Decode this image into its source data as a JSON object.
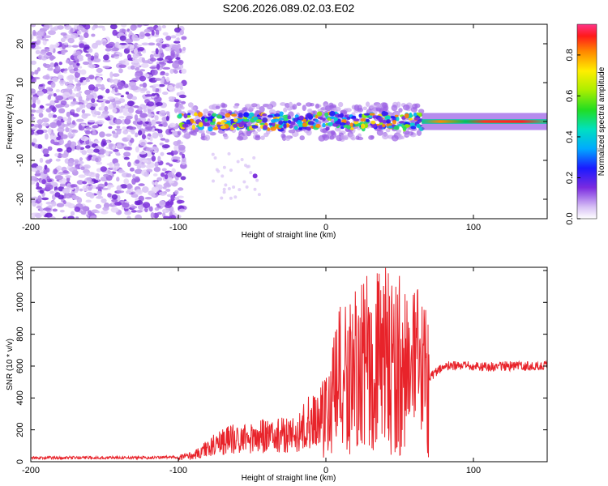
{
  "figure": {
    "title": "S206.2026.089.02.03.E02"
  },
  "chart_data": [
    {
      "type": "heatmap",
      "name": "spectrogram",
      "xlabel": "Height of straight line (km)",
      "ylabel": "Frequency (Hz)",
      "xlim": [
        -200,
        150
      ],
      "ylim": [
        -25,
        25
      ],
      "xticks": [
        -200,
        -100,
        0,
        100
      ],
      "yticks": [
        -20,
        -10,
        0,
        10,
        20
      ],
      "colorbar": {
        "label": "Normalized spectral amplitude",
        "range": [
          0,
          0.95
        ],
        "ticks": [
          0.0,
          0.2,
          0.4,
          0.6,
          0.8
        ],
        "tick_labels": [
          "0.0",
          "0.2",
          "0.4",
          "0.6",
          "0.8"
        ]
      },
      "regions": [
        {
          "x": [
            -200,
            -100
          ],
          "freq_range": [
            -25,
            25
          ],
          "level": "noise",
          "amplitude": 0.1
        },
        {
          "x": [
            -100,
            65
          ],
          "freq_center": 0,
          "freq_halfwidth": 3,
          "amplitude": 0.35
        },
        {
          "x": [
            65,
            150
          ],
          "freq_center": 0,
          "freq_halfwidth": 1,
          "amplitude": 0.85
        }
      ]
    },
    {
      "type": "line",
      "name": "snr",
      "xlabel": "Height of straight line (km)",
      "ylabel": "SNR (10 * v/v)",
      "xlim": [
        -200,
        150
      ],
      "ylim": [
        0,
        1220
      ],
      "xticks": [
        -200,
        -100,
        0,
        100
      ],
      "yticks": [
        0,
        200,
        400,
        600,
        800,
        1000,
        1200
      ],
      "color": "#e8232a",
      "series": [
        {
          "name": "SNR",
          "x": [
            -200,
            -180,
            -160,
            -140,
            -120,
            -100,
            -90,
            -80,
            -70,
            -60,
            -50,
            -40,
            -30,
            -20,
            -10,
            0,
            10,
            20,
            30,
            40,
            50,
            60,
            70,
            80,
            90,
            100,
            110,
            120,
            130,
            140,
            150
          ],
          "y": [
            25,
            25,
            25,
            25,
            25,
            30,
            40,
            90,
            140,
            150,
            160,
            170,
            175,
            180,
            280,
            280,
            500,
            550,
            600,
            620,
            600,
            550,
            530,
            600,
            600,
            600,
            595,
            600,
            600,
            600,
            600
          ]
        }
      ]
    }
  ]
}
